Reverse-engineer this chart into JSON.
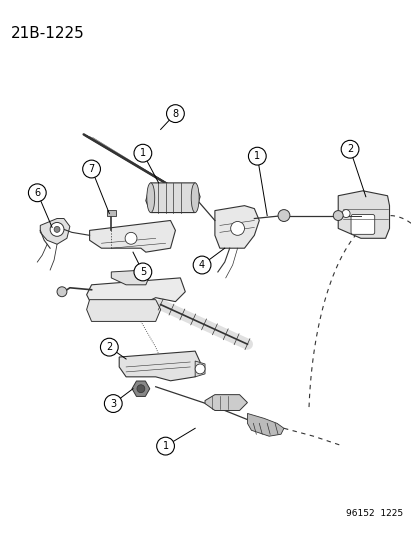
{
  "title": "21B-1225",
  "footer": "96152  1225",
  "bg_color": "#ffffff",
  "title_fontsize": 11,
  "footer_fontsize": 6.5,
  "fig_width": 4.14,
  "fig_height": 5.33,
  "dpi": 100,
  "line_color": "#333333",
  "light_gray": "#cccccc",
  "mid_gray": "#999999"
}
